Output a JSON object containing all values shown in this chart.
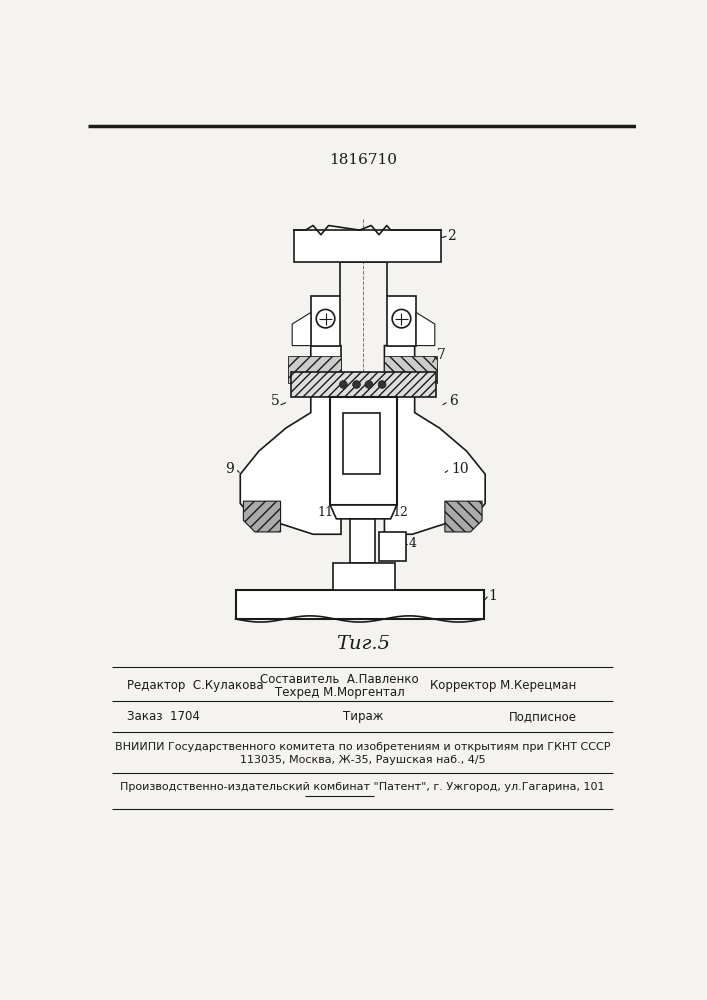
{
  "patent_number": "1816710",
  "fig_label": "Τиг.5",
  "background_color": "#f5f3f0",
  "line_color": "#1a1a1a",
  "footer": {
    "line1_left": "Редактор  С.Кулакова",
    "line1_center_top": "Составитель  А.Павленко",
    "line1_center_bot": "Техред М.Моргентал",
    "line1_right": "Корректор М.Керецман",
    "line2_left": "Заказ  1704",
    "line2_center": "Тираж",
    "line2_right": "Подписное",
    "line3": "ВНИИПИ Государственного комитета по изобретениям и открытиям при ГКНТ СССР",
    "line4": "113035, Москва, Ж-35, Раушская наб., 4/5",
    "line5": "Производственно-издательский комбинат \"Патент\", г. Ужгород, ул.Гагарина, 101"
  }
}
